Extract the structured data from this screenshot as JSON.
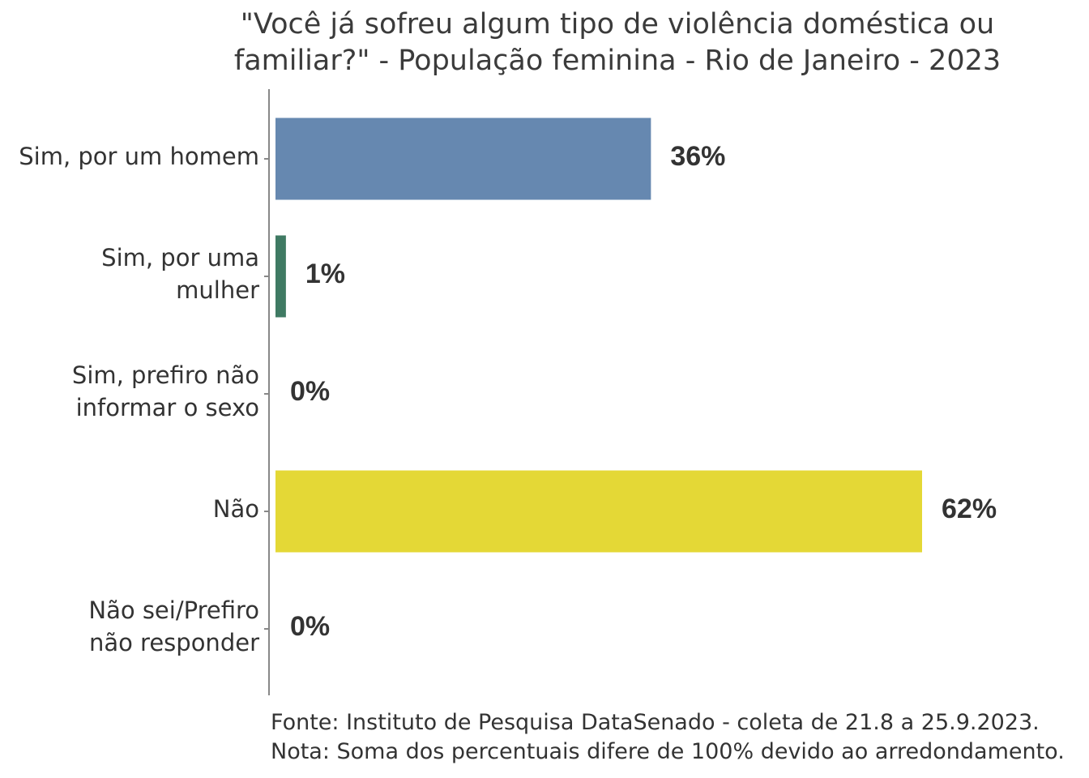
{
  "chart_data": {
    "type": "bar",
    "orientation": "horizontal",
    "title_lines": [
      "\"Você já sofreu algum tipo de violência doméstica ou",
      "familiar?\" - População feminina - Rio de Janeiro - 2023"
    ],
    "categories": [
      [
        "Sim, por um homem"
      ],
      [
        "Sim, por uma",
        "mulher"
      ],
      [
        "Sim, prefiro não",
        "informar o sexo"
      ],
      [
        "Não"
      ],
      [
        "Não sei/Prefiro",
        "não responder"
      ]
    ],
    "values": [
      36,
      1,
      0,
      62,
      0
    ],
    "value_labels": [
      "36%",
      "1%",
      "0%",
      "62%",
      "0%"
    ],
    "colors": [
      "#6688b0",
      "#3f7a63",
      "#4b6f98",
      "#e4d836",
      "#999999"
    ],
    "xlim": [
      0,
      62
    ],
    "grid": false,
    "xlabel": "",
    "ylabel": ""
  },
  "footer": {
    "source": "Fonte: Instituto de Pesquisa DataSenado - coleta de 21.8 a 25.9.2023.",
    "note": "Nota: Soma dos percentuais difere de 100% devido ao arredondamento."
  }
}
